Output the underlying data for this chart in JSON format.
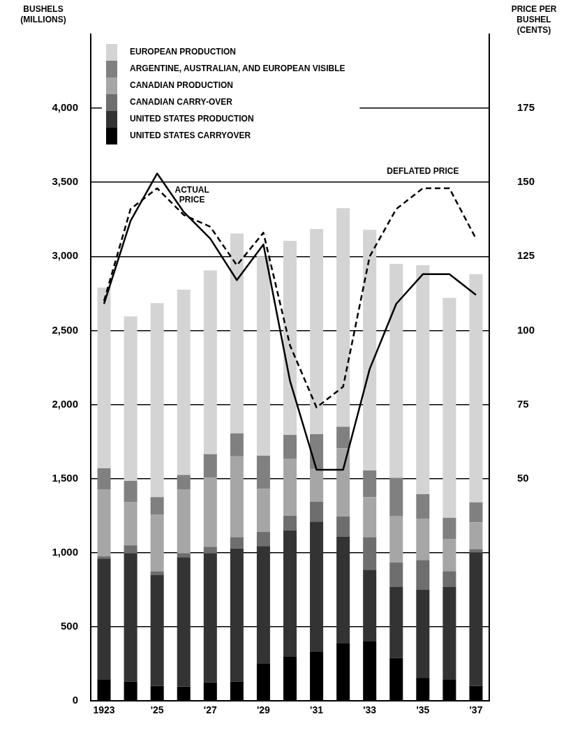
{
  "chart_data": {
    "type": "bar",
    "stacked": true,
    "categories": [
      "1923",
      null,
      "'25",
      null,
      "'27",
      null,
      "'29",
      null,
      "'31",
      null,
      "'33",
      null,
      "'35",
      null,
      "'37"
    ],
    "ylabel": "BUSHELS (MILLIONS)",
    "y2label": "PRICE PER BUSHEL (CENTS)",
    "ylim": [
      0,
      4500
    ],
    "yticks": [
      0,
      500,
      {
        "value": 1000,
        "label": "1,000"
      },
      {
        "value": 1500,
        "label": "1,500"
      },
      {
        "value": 2000,
        "label": "2,000"
      },
      {
        "value": 2500,
        "label": "2,500"
      },
      {
        "value": 3000,
        "label": "3,000"
      },
      {
        "value": 3500,
        "label": "3,500"
      },
      {
        "value": 4000,
        "label": "4,000"
      }
    ],
    "y2lim": [
      -25,
      200
    ],
    "y2ticks": [
      50,
      75,
      100,
      125,
      150,
      175
    ],
    "grid": "y",
    "legend": "top left",
    "marker": "none",
    "series": [
      {
        "name": "UNITED STATES CARRYOVER",
        "color": "#000000",
        "values": [
          145,
          130,
          100,
          95,
          125,
          130,
          250,
          300,
          330,
          390,
          400,
          290,
          155,
          145,
          100
        ]
      },
      {
        "name": "UNITED STATES PRODUCTION",
        "color": "#333333",
        "values": [
          815,
          865,
          750,
          875,
          870,
          900,
          795,
          850,
          880,
          720,
          485,
          480,
          595,
          625,
          900
        ]
      },
      {
        "name": "CANADIAN CARRY-OVER",
        "color": "#6e6e6e",
        "values": [
          15,
          55,
          25,
          25,
          45,
          75,
          95,
          100,
          135,
          135,
          220,
          165,
          200,
          105,
          25
        ]
      },
      {
        "name": "CANADIAN PRODUCTION",
        "color": "#a6a6a6",
        "values": [
          450,
          290,
          380,
          430,
          465,
          545,
          290,
          385,
          220,
          460,
          270,
          310,
          280,
          215,
          180
        ]
      },
      {
        "name": "ARGENTINE, AUSTRALIAN, AND EUROPEAN VISIBLE",
        "color": "#808080",
        "values": [
          145,
          145,
          120,
          100,
          160,
          155,
          225,
          160,
          235,
          145,
          180,
          260,
          165,
          145,
          135
        ]
      },
      {
        "name": "EUROPEAN PRODUCTION",
        "color": "#d4d4d4",
        "values": [
          1220,
          1110,
          1310,
          1250,
          1240,
          1350,
          1345,
          1310,
          1385,
          1475,
          1625,
          1445,
          1545,
          1485,
          1540
        ]
      },
      {
        "name": "ACTUAL PRICE",
        "type": "line",
        "axis": "y2",
        "color": "#000000",
        "line_style": "solid",
        "values": [
          109,
          137,
          153,
          140,
          131,
          117,
          129,
          83,
          53,
          53,
          87,
          109,
          119,
          119,
          112
        ]
      },
      {
        "name": "DEFLATED PRICE",
        "type": "line",
        "axis": "y2",
        "color": "#000000",
        "line_style": "dashed",
        "values": [
          110,
          141,
          148,
          139,
          135,
          122,
          133,
          95,
          74,
          81,
          125,
          141,
          148,
          148,
          131
        ]
      }
    ]
  }
}
